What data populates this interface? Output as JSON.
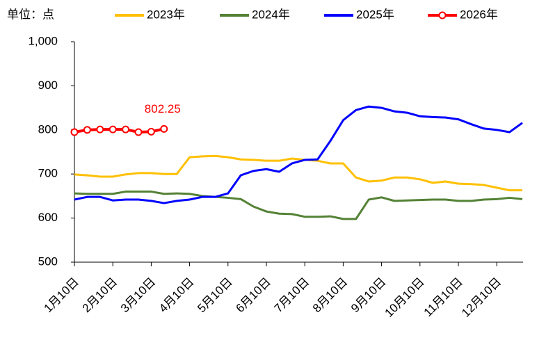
{
  "chart_data": {
    "type": "line",
    "unit_label": "单位：点",
    "categories": [
      "1月10日",
      null,
      null,
      "2月10日",
      null,
      null,
      "3月10日",
      null,
      null,
      "4月10日",
      null,
      null,
      "5月10日",
      null,
      null,
      "6月10日",
      null,
      null,
      "7月10日",
      null,
      null,
      "8月10日",
      null,
      null,
      "9月10日",
      null,
      null,
      "10月10日",
      null,
      null,
      "11月10日",
      null,
      null,
      "12月10日",
      null,
      null
    ],
    "ylim": [
      500,
      1000
    ],
    "yticks": [
      500,
      600,
      700,
      800,
      900,
      {
        "value": 1000,
        "label": "1,000"
      }
    ],
    "grid": false,
    "legend": "top",
    "series": [
      {
        "name": "2023年",
        "color": "#ffc000",
        "values": [
          699,
          697,
          694,
          694,
          699,
          702,
          702,
          700,
          700,
          738,
          740,
          741,
          738,
          733,
          732,
          730,
          730,
          735,
          732,
          730,
          724,
          724,
          692,
          683,
          685,
          692,
          692,
          688,
          680,
          683,
          678,
          677,
          675,
          669,
          663,
          663
        ]
      },
      {
        "name": "2024年",
        "color": "#548235",
        "values": [
          656,
          655,
          655,
          655,
          660,
          660,
          660,
          655,
          656,
          655,
          650,
          648,
          646,
          643,
          626,
          615,
          610,
          609,
          603,
          603,
          604,
          598,
          598,
          642,
          647,
          639,
          640,
          641,
          642,
          642,
          639,
          639,
          642,
          643,
          646,
          643
        ]
      },
      {
        "name": "2025年",
        "color": "#0000ff",
        "values": [
          642,
          648,
          648,
          640,
          642,
          642,
          639,
          634,
          639,
          642,
          648,
          648,
          656,
          697,
          707,
          711,
          705,
          724,
          732,
          733,
          775,
          822,
          845,
          853,
          850,
          842,
          839,
          831,
          829,
          828,
          824,
          813,
          803,
          800,
          795,
          816
        ]
      },
      {
        "name": "2026年",
        "color": "#ff0000",
        "markers": true,
        "annotate_last": true,
        "values": [
          795,
          800,
          801,
          801,
          801,
          795,
          796,
          802.25,
          null,
          null,
          null,
          null,
          null,
          null,
          null,
          null,
          null,
          null,
          null,
          null,
          null,
          null,
          null,
          null,
          null,
          null,
          null,
          null,
          null,
          null,
          null,
          null,
          null,
          null,
          null,
          null
        ]
      }
    ]
  }
}
